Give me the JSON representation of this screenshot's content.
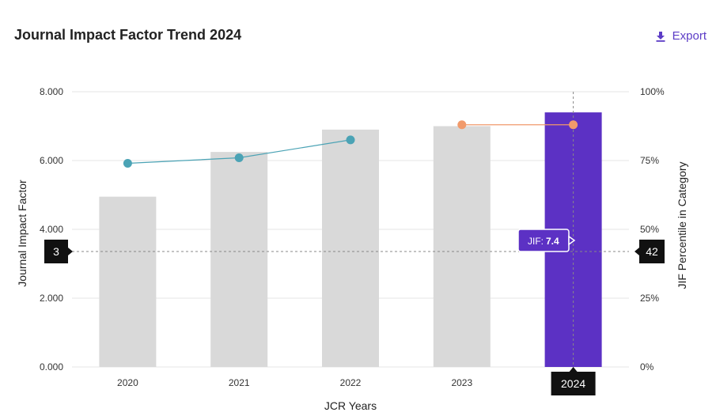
{
  "header": {
    "title": "Journal Impact Factor Trend 2024",
    "export_label": "Export",
    "export_icon": "download-icon"
  },
  "chart_data": {
    "type": "bar",
    "title": "Journal Impact Factor Trend 2024",
    "xlabel": "JCR Years",
    "ylabel": "Journal Impact Factor",
    "y2label": "JIF Percentile in Category",
    "categories": [
      "2020",
      "2021",
      "2022",
      "2023",
      "2024"
    ],
    "series": [
      {
        "name": "Journal Impact Factor",
        "kind": "bar",
        "axis": "left",
        "values": [
          4.95,
          6.25,
          6.9,
          7.0,
          7.4
        ]
      },
      {
        "name": "JIF Percentile",
        "kind": "line",
        "axis": "right",
        "values": [
          74,
          76,
          82.5,
          88,
          88
        ]
      }
    ],
    "ylim": [
      0,
      8
    ],
    "y_ticks": [
      "0.000",
      "2.000",
      "4.000",
      "6.000",
      "8.000"
    ],
    "y2lim": [
      0,
      100
    ],
    "y2_ticks": [
      "0%",
      "25%",
      "50%",
      "75%",
      "100%"
    ],
    "highlight_index": 4,
    "colors": {
      "bar": "#d9d9d9",
      "bar_highlight": "#5c31c4",
      "line_past": "#4ba3b5",
      "line_current": "#f19a6b",
      "crosshair": "#888888",
      "marker_box": "#111111"
    },
    "tooltip": {
      "label": "JIF:",
      "value": "7.4"
    },
    "crosshair": {
      "left_value": "3",
      "right_value": "42",
      "x_label": "2024"
    }
  }
}
